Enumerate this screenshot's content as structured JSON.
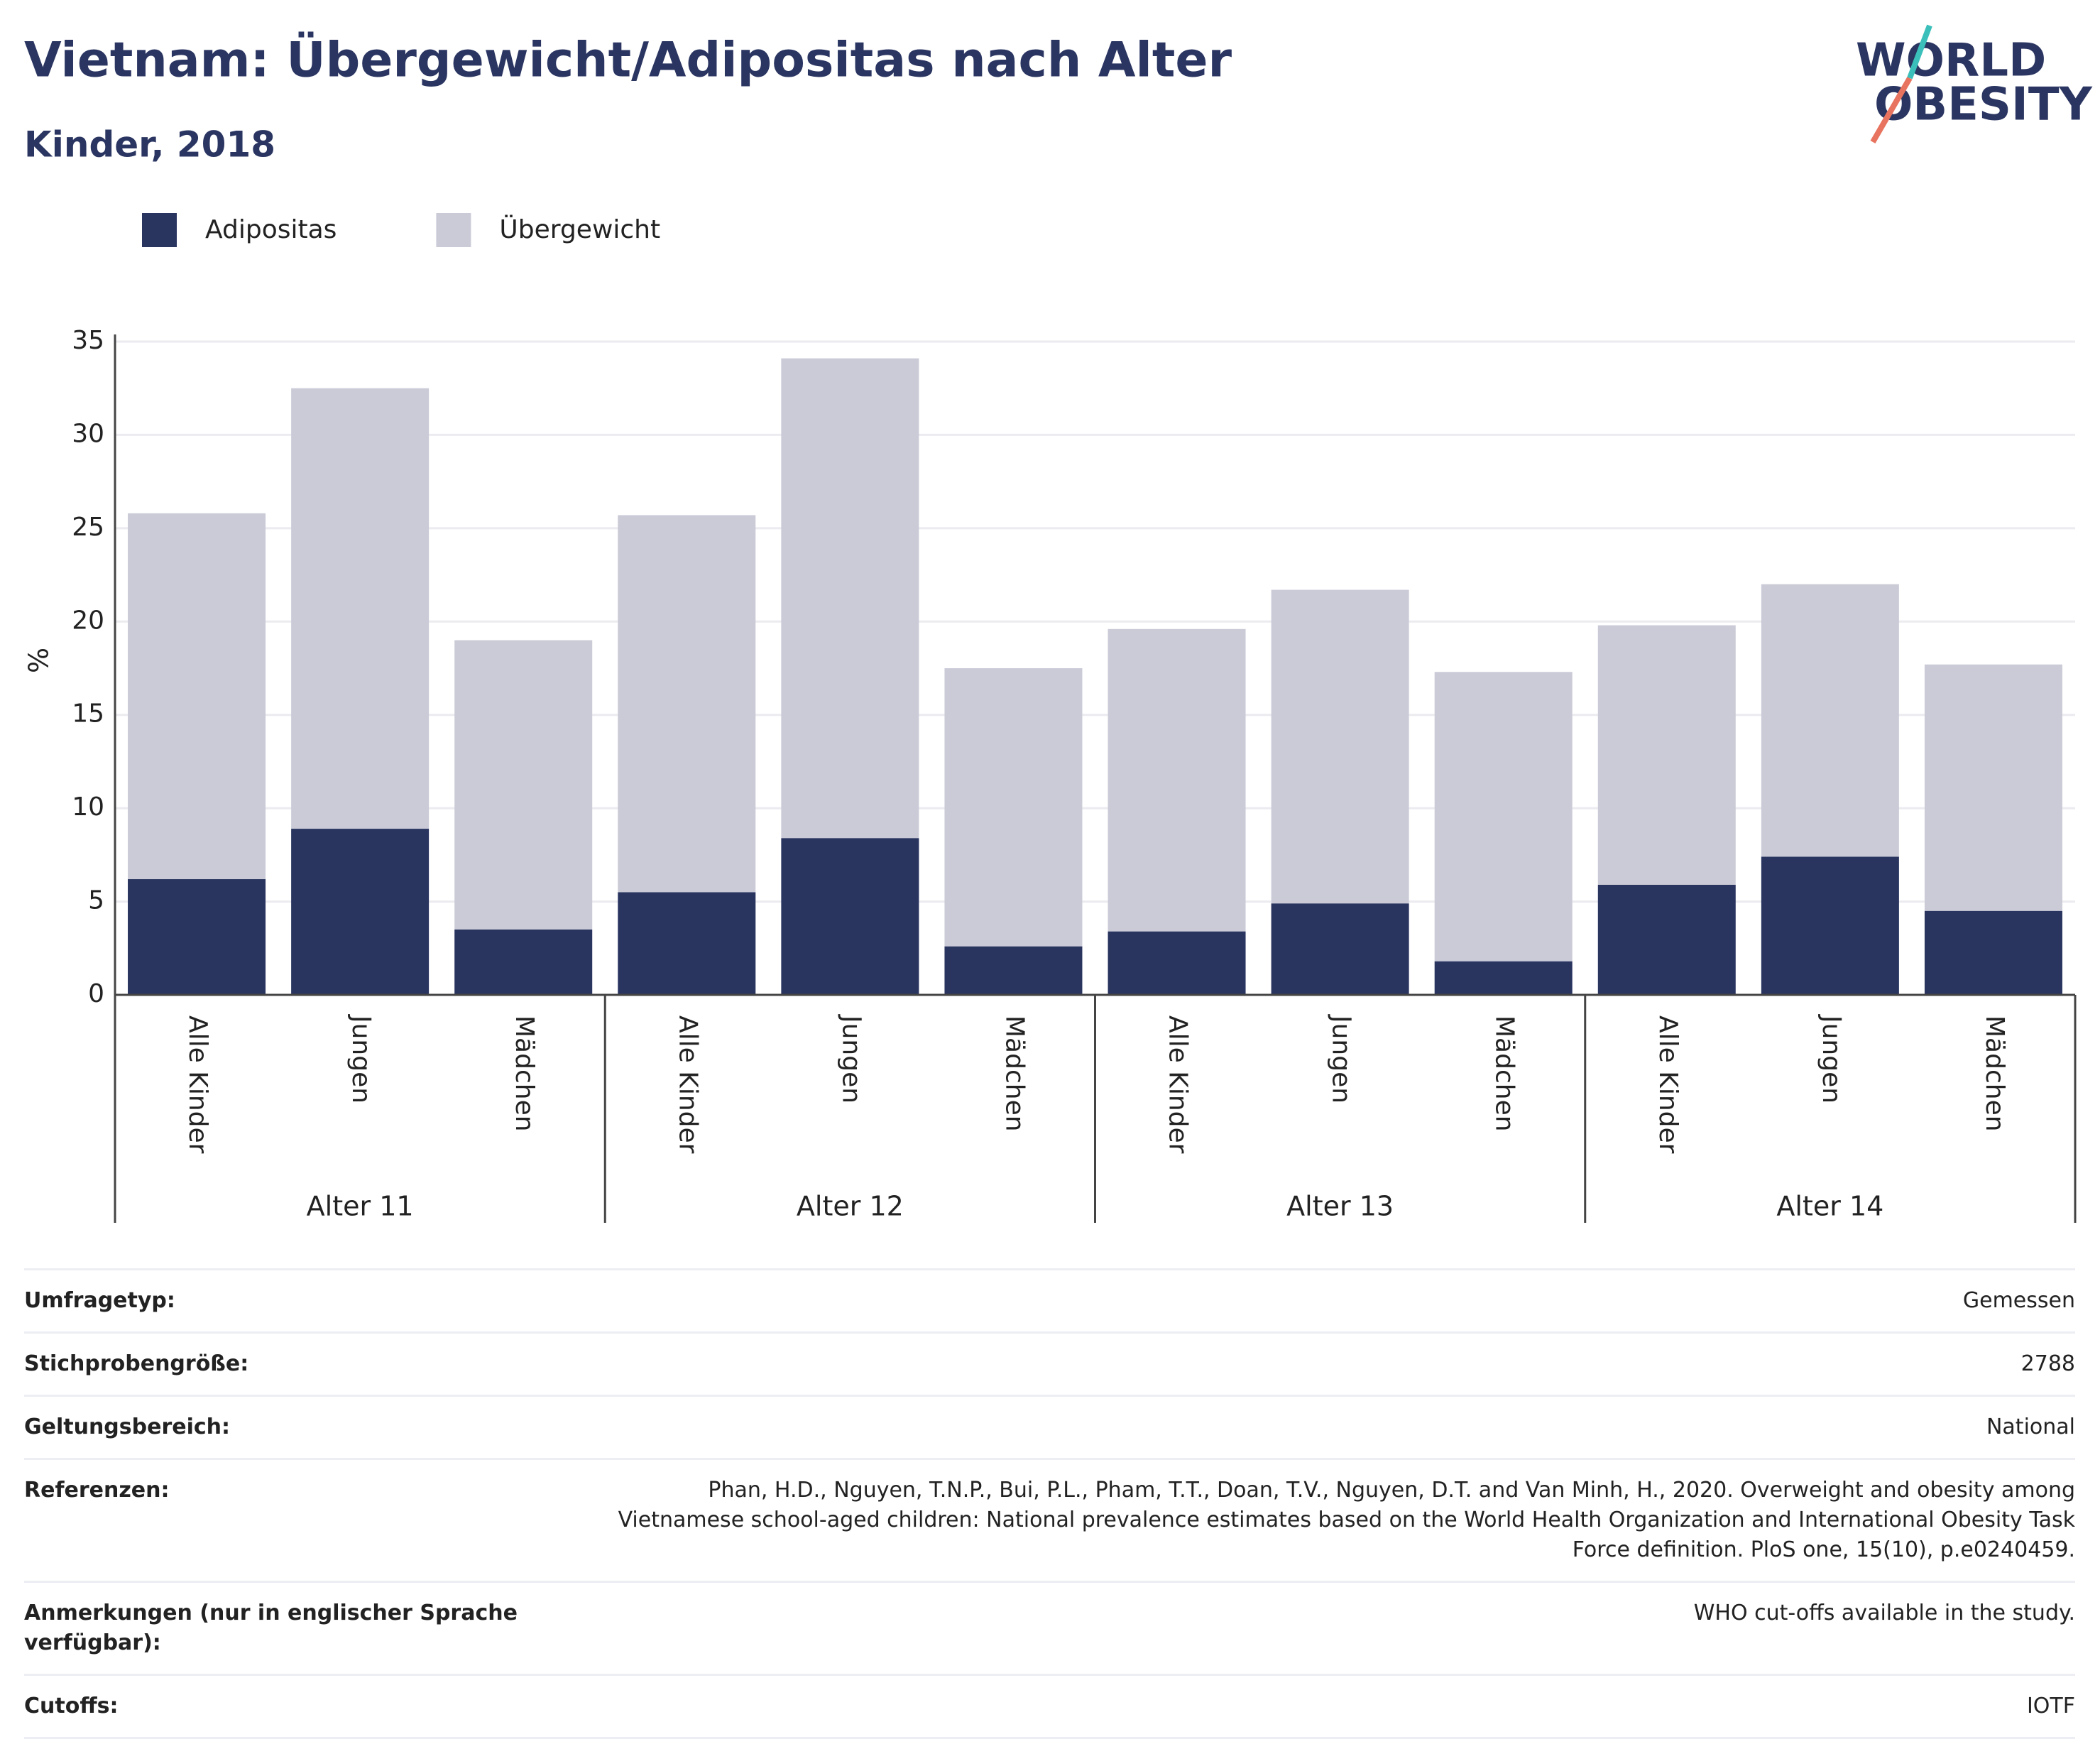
{
  "chart_data": {
    "type": "bar",
    "stacked": true,
    "title": "Vietnam: Übergewicht/Adipositas nach Alter",
    "subtitle": "Kinder, 2018",
    "y_label": "%",
    "categories": [
      "Alle Kinder",
      "Jungen",
      "Mädchen",
      "Alle Kinder",
      "Jungen",
      "Mädchen",
      "Alle Kinder",
      "Jungen",
      "Mädchen",
      "Alle Kinder",
      "Jungen",
      "Mädchen"
    ],
    "groups": [
      "Alter 11",
      "Alter 12",
      "Alter 13",
      "Alter 14"
    ],
    "series": [
      {
        "name": "Adipositas",
        "color": "#29345f",
        "values": [
          6.2,
          8.9,
          3.5,
          5.5,
          8.4,
          2.6,
          3.4,
          4.9,
          1.8,
          5.9,
          7.4,
          4.5
        ]
      },
      {
        "name": "Übergewicht",
        "color": "#cacbd7",
        "values": [
          19.6,
          23.6,
          15.5,
          20.2,
          25.7,
          14.9,
          16.2,
          16.8,
          15.5,
          13.9,
          14.6,
          13.2
        ]
      }
    ],
    "ylim": [
      0,
      35
    ],
    "yticks": [
      0,
      5,
      10,
      15,
      20,
      25,
      30,
      35
    ],
    "grid": true
  },
  "logo": {
    "line1": "WORLD",
    "line2": "OBESITY"
  },
  "info": [
    {
      "label": "Umfragetyp:",
      "value": "Gemessen"
    },
    {
      "label": "Stichprobengröße:",
      "value": "2788"
    },
    {
      "label": "Geltungsbereich:",
      "value": "National"
    },
    {
      "label": "Referenzen:",
      "value": "Phan, H.D., Nguyen, T.N.P., Bui, P.L., Pham, T.T., Doan, T.V., Nguyen, D.T. and Van Minh, H., 2020. Overweight and obesity among Vietnamese school-aged children: National prevalence estimates based on the World Health Organization and International Obesity Task Force definition. PloS one, 15(10), p.e0240459."
    },
    {
      "label": "Anmerkungen (nur in englischer Sprache verfügbar):",
      "value": "WHO cut-offs available in the study."
    },
    {
      "label": "Cutoffs:",
      "value": "IOTF"
    }
  ]
}
